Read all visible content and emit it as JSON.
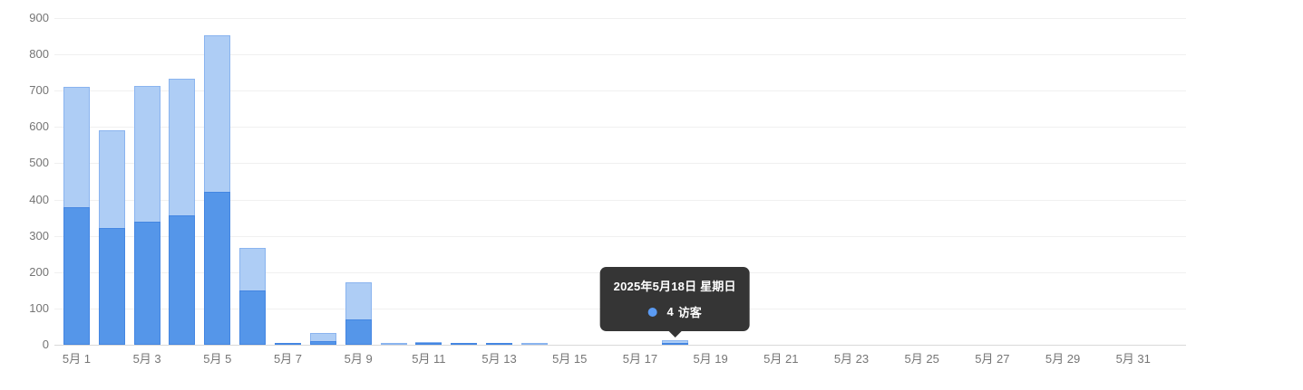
{
  "chart_data": {
    "type": "bar",
    "title": "",
    "ylim": [
      0,
      900
    ],
    "y_ticks": [
      0,
      100,
      200,
      300,
      400,
      500,
      600,
      700,
      800,
      900
    ],
    "x_tick_labels": [
      "5月 1",
      "5月 3",
      "5月 5",
      "5月 7",
      "5月 9",
      "5月 11",
      "5月 13",
      "5月 15",
      "5月 17",
      "5月 19",
      "5月 21",
      "5月 23",
      "5月 25",
      "5月 27",
      "5月 29",
      "5月 31"
    ],
    "x_tick_positions": [
      0,
      2,
      4,
      6,
      8,
      10,
      12,
      14,
      16,
      18,
      20,
      22,
      24,
      26,
      28,
      30
    ],
    "num_day_slots": 32,
    "grid": "horizontal-only",
    "legend": "none",
    "series": [
      {
        "key": "total-light-blue",
        "name": "",
        "color": "#aecdf5",
        "border_color": "#8ab4ef",
        "values": [
          710,
          590,
          714,
          732,
          852,
          268,
          4,
          32,
          172,
          2,
          7,
          6,
          6,
          2,
          0,
          0,
          0,
          12,
          0,
          0,
          0,
          0,
          0,
          0,
          0,
          0,
          0,
          0,
          0,
          0,
          0
        ]
      },
      {
        "key": "visitors-dark-blue",
        "name": "访客",
        "color": "#5596e9",
        "border_color": "#4486e2",
        "values": [
          380,
          322,
          340,
          357,
          422,
          150,
          2,
          10,
          70,
          0,
          2,
          6,
          6,
          0,
          0,
          0,
          0,
          4,
          0,
          0,
          0,
          0,
          0,
          0,
          0,
          0,
          0,
          0,
          0,
          0,
          0
        ]
      }
    ],
    "tooltip": {
      "title": "2025年5月18日 星期日",
      "items": [
        {
          "value": "4",
          "label": "访客",
          "dot_color": "#5b9bf3"
        }
      ],
      "bg": "#353535",
      "text_color": "#ffffff"
    },
    "colors": {
      "grid_line": "#f0f0f0",
      "axis_line": "#d9d9d9",
      "tick_label": "#757575"
    }
  }
}
